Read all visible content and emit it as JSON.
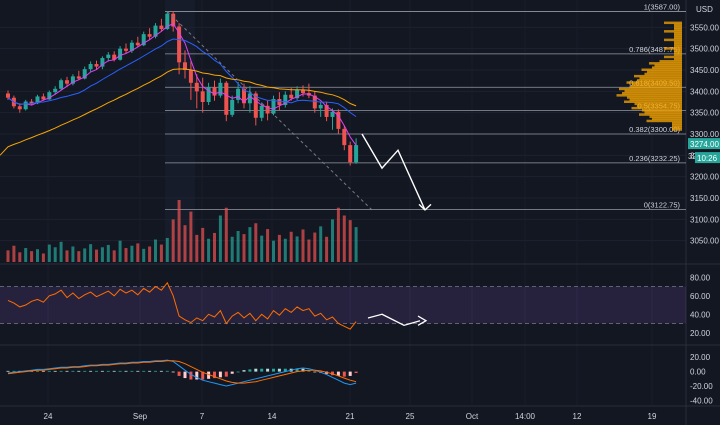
{
  "chart_data": [
    {
      "type": "candlestick",
      "title": "",
      "currency": "USD",
      "ylim": [
        3000,
        3600
      ],
      "y_ticks": [
        "3550.00",
        "3500.00",
        "3450.00",
        "3400.00",
        "3350.00",
        "3300.00",
        "3250.00",
        "3200.00",
        "3150.00",
        "3100.00",
        "3050.00"
      ],
      "x_ticks": [
        "24",
        "Sep",
        "7",
        "14",
        "21",
        "25",
        "Oct",
        "14:00",
        "12",
        "19"
      ],
      "fib_levels": [
        {
          "label": "1(3587.00)",
          "value": 3587.0
        },
        {
          "label": "0.786(3487.75)",
          "value": 3487.75
        },
        {
          "label": "0.618(3409.50)",
          "value": 3409.5
        },
        {
          "label": "0.5(3354.75)",
          "value": 3354.75
        },
        {
          "label": "0.382(3300.00)",
          "value": 3300.0
        },
        {
          "label": "0.236(3232.25)",
          "value": 3232.25
        },
        {
          "label": "0(3122.75)",
          "value": 3122.75
        }
      ],
      "last_price": "3274.00",
      "price_badge_2": "32",
      "countdown": "10:26",
      "candles": [
        [
          3395,
          3402,
          3380,
          3385
        ],
        [
          3385,
          3390,
          3360,
          3365
        ],
        [
          3365,
          3372,
          3350,
          3358
        ],
        [
          3358,
          3380,
          3355,
          3376
        ],
        [
          3376,
          3382,
          3368,
          3372
        ],
        [
          3372,
          3392,
          3370,
          3388
        ],
        [
          3388,
          3395,
          3378,
          3381
        ],
        [
          3381,
          3402,
          3380,
          3398
        ],
        [
          3398,
          3412,
          3392,
          3406
        ],
        [
          3406,
          3430,
          3402,
          3426
        ],
        [
          3426,
          3434,
          3410,
          3418
        ],
        [
          3418,
          3440,
          3414,
          3435
        ],
        [
          3435,
          3448,
          3426,
          3430
        ],
        [
          3430,
          3458,
          3428,
          3452
        ],
        [
          3452,
          3470,
          3446,
          3464
        ],
        [
          3464,
          3472,
          3450,
          3458
        ],
        [
          3458,
          3482,
          3452,
          3478
        ],
        [
          3478,
          3492,
          3470,
          3486
        ],
        [
          3486,
          3494,
          3470,
          3474
        ],
        [
          3474,
          3506,
          3472,
          3500
        ],
        [
          3500,
          3512,
          3488,
          3495
        ],
        [
          3495,
          3520,
          3490,
          3514
        ],
        [
          3514,
          3528,
          3504,
          3508
        ],
        [
          3508,
          3540,
          3506,
          3534
        ],
        [
          3534,
          3548,
          3520,
          3528
        ],
        [
          3528,
          3560,
          3524,
          3554
        ],
        [
          3554,
          3570,
          3540,
          3546
        ],
        [
          3546,
          3588,
          3544,
          3582
        ],
        [
          3582,
          3588,
          3540,
          3552
        ],
        [
          3552,
          3560,
          3440,
          3468
        ],
        [
          3468,
          3496,
          3430,
          3450
        ],
        [
          3450,
          3470,
          3380,
          3420
        ],
        [
          3420,
          3440,
          3360,
          3400
        ],
        [
          3400,
          3432,
          3350,
          3375
        ],
        [
          3375,
          3420,
          3368,
          3410
        ],
        [
          3410,
          3425,
          3378,
          3390
        ],
        [
          3390,
          3430,
          3385,
          3420
        ],
        [
          3420,
          3424,
          3330,
          3345
        ],
        [
          3345,
          3390,
          3340,
          3380
        ],
        [
          3380,
          3422,
          3372,
          3406
        ],
        [
          3406,
          3418,
          3360,
          3372
        ],
        [
          3372,
          3412,
          3350,
          3395
        ],
        [
          3395,
          3400,
          3320,
          3338
        ],
        [
          3338,
          3374,
          3330,
          3366
        ],
        [
          3366,
          3378,
          3332,
          3348
        ],
        [
          3348,
          3390,
          3344,
          3382
        ],
        [
          3382,
          3398,
          3356,
          3368
        ],
        [
          3368,
          3400,
          3362,
          3392
        ],
        [
          3392,
          3408,
          3378,
          3384
        ],
        [
          3384,
          3412,
          3380,
          3404
        ],
        [
          3404,
          3414,
          3388,
          3396
        ],
        [
          3396,
          3418,
          3384,
          3390
        ],
        [
          3390,
          3400,
          3350,
          3360
        ],
        [
          3360,
          3374,
          3340,
          3368
        ],
        [
          3368,
          3376,
          3330,
          3340
        ],
        [
          3340,
          3360,
          3310,
          3352
        ],
        [
          3352,
          3358,
          3300,
          3312
        ],
        [
          3312,
          3320,
          3262,
          3274
        ],
        [
          3274,
          3282,
          3226,
          3234
        ],
        [
          3234,
          3290,
          3230,
          3274
        ]
      ],
      "volume": [
        30,
        42,
        25,
        36,
        28,
        33,
        22,
        45,
        38,
        52,
        30,
        40,
        28,
        35,
        46,
        32,
        38,
        44,
        30,
        55,
        36,
        42,
        48,
        34,
        40,
        58,
        45,
        62,
        110,
        160,
        95,
        130,
        70,
        88,
        60,
        75,
        120,
        140,
        65,
        80,
        72,
        90,
        100,
        68,
        85,
        55,
        70,
        60,
        78,
        66,
        84,
        58,
        76,
        92,
        65,
        110,
        140,
        120,
        108,
        90
      ],
      "volume_up": [
        false,
        false,
        false,
        true,
        false,
        true,
        false,
        true,
        true,
        true,
        false,
        true,
        false,
        true,
        true,
        false,
        true,
        true,
        false,
        true,
        false,
        true,
        false,
        true,
        false,
        true,
        false,
        true,
        false,
        false,
        false,
        false,
        false,
        false,
        true,
        false,
        true,
        false,
        true,
        true,
        false,
        true,
        false,
        true,
        false,
        true,
        false,
        true,
        false,
        true,
        false,
        false,
        false,
        true,
        false,
        true,
        false,
        false,
        false,
        true
      ],
      "rsi": [
        55,
        52,
        48,
        50,
        54,
        56,
        53,
        60,
        62,
        66,
        58,
        63,
        57,
        61,
        64,
        59,
        62,
        65,
        60,
        67,
        63,
        66,
        61,
        68,
        64,
        70,
        66,
        74,
        60,
        38,
        34,
        31,
        36,
        33,
        40,
        37,
        44,
        30,
        38,
        42,
        36,
        41,
        33,
        40,
        35,
        44,
        39,
        46,
        42,
        48,
        44,
        46,
        38,
        41,
        34,
        37,
        30,
        27,
        24,
        32
      ],
      "rsi_ylim": [
        10,
        90
      ],
      "rsi_ticks": [
        "80.00",
        "60.00",
        "40.00",
        "20.00"
      ],
      "macd": [
        -2,
        -1,
        0,
        1,
        2,
        3,
        3,
        4,
        5,
        6,
        6,
        7,
        7,
        8,
        9,
        9,
        10,
        10,
        11,
        12,
        12,
        13,
        13,
        14,
        14,
        15,
        15,
        16,
        14,
        8,
        2,
        -4,
        -8,
        -12,
        -14,
        -16,
        -18,
        -20,
        -18,
        -16,
        -14,
        -12,
        -10,
        -8,
        -6,
        -4,
        -2,
        0,
        2,
        4,
        5,
        4,
        2,
        -1,
        -4,
        -8,
        -12,
        -16,
        -18,
        -16
      ],
      "macd_signal": [
        -3,
        -2,
        -1,
        0,
        1,
        2,
        2,
        3,
        4,
        5,
        5,
        6,
        6,
        7,
        8,
        8,
        9,
        9,
        10,
        11,
        11,
        12,
        12,
        13,
        13,
        14,
        14,
        15,
        15,
        14,
        11,
        7,
        3,
        -1,
        -4,
        -7,
        -10,
        -13,
        -15,
        -16,
        -16,
        -15,
        -14,
        -12,
        -10,
        -8,
        -6,
        -4,
        -2,
        0,
        1,
        2,
        2,
        1,
        -1,
        -3,
        -6,
        -9,
        -12,
        -14
      ],
      "macd_hist": [
        1,
        1,
        1,
        1,
        1,
        1,
        1,
        1,
        1,
        1,
        1,
        1,
        1,
        1,
        1,
        1,
        1,
        1,
        1,
        1,
        1,
        1,
        1,
        1,
        1,
        1,
        1,
        1,
        -1,
        -6,
        -9,
        -11,
        -11,
        -11,
        -10,
        -9,
        -8,
        -7,
        -3,
        0,
        2,
        3,
        4,
        4,
        4,
        4,
        4,
        4,
        4,
        4,
        4,
        2,
        0,
        -2,
        -3,
        -5,
        -6,
        -7,
        -6,
        -2
      ],
      "macd_ticks": [
        "20.00",
        "0.00",
        "-20.00",
        "-40.00"
      ],
      "macd_ylim": [
        -45,
        30
      ],
      "colors": {
        "up": "#26a69a",
        "down": "#ef5350",
        "ema": "#f7a600",
        "sma": "#2962ff",
        "wma": "#e040fb",
        "rsi": "#ff6d00",
        "macd": "#2196f3",
        "signal": "#ff6d00",
        "vp": "#f7a600",
        "arrow": "#ffffff"
      }
    }
  ]
}
